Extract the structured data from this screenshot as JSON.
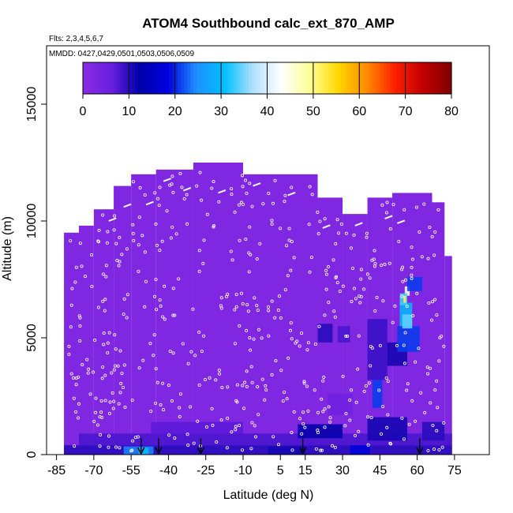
{
  "chart_data": {
    "type": "heatmap",
    "title": "ATOM4 Southbound calc_ext_870_AMP",
    "subtitle_flights": "Flts: 2,3,4,5,6,7",
    "subtitle_dates": "MMDD: 0427,0429,0501,0503,0506,0509",
    "xlabel": "Latitude (deg N)",
    "ylabel": "Altitude (m)",
    "xlim": [
      -89,
      89
    ],
    "ylim": [
      0,
      17500
    ],
    "x_ticks": [
      "-85",
      "-70",
      "-55",
      "-40",
      "-25",
      "-10",
      "5",
      "15",
      "30",
      "45",
      "60",
      "75"
    ],
    "x_tick_values": [
      -85,
      -70,
      -55,
      -40,
      -25,
      -10,
      5,
      15,
      30,
      45,
      60,
      75
    ],
    "y_ticks": [
      "0",
      "5000",
      "10000",
      "15000"
    ],
    "y_tick_values": [
      0,
      5000,
      10000,
      15000
    ],
    "colorbar": {
      "min": 0,
      "max": 80,
      "ticks": [
        "0",
        "10",
        "20",
        "30",
        "40",
        "50",
        "60",
        "70",
        "80"
      ],
      "tick_values": [
        0,
        10,
        20,
        30,
        40,
        50,
        60,
        70,
        80
      ],
      "colors": [
        "#8a2be2",
        "#6a1fe0",
        "#0000a8",
        "#0000e0",
        "#1e90ff",
        "#00bfff",
        "#b0e0ff",
        "#ffffff",
        "#ffff99",
        "#ffd700",
        "#ff8c00",
        "#ff2000",
        "#c00000",
        "#800000"
      ]
    },
    "coverage_columns": [
      {
        "lat0": -82,
        "lat1": -76,
        "alt_top": 9500
      },
      {
        "lat0": -76,
        "lat1": -70,
        "alt_top": 9800
      },
      {
        "lat0": -70,
        "lat1": -62,
        "alt_top": 10500
      },
      {
        "lat0": -62,
        "lat1": -55,
        "alt_top": 11500
      },
      {
        "lat0": -55,
        "lat1": -45,
        "alt_top": 12000
      },
      {
        "lat0": -45,
        "lat1": -30,
        "alt_top": 12200
      },
      {
        "lat0": -30,
        "lat1": -10,
        "alt_top": 12500
      },
      {
        "lat0": -10,
        "lat1": 10,
        "alt_top": 12000
      },
      {
        "lat0": 10,
        "lat1": 20,
        "alt_top": 12000
      },
      {
        "lat0": 20,
        "lat1": 30,
        "alt_top": 11000
      },
      {
        "lat0": 30,
        "lat1": 40,
        "alt_top": 10300
      },
      {
        "lat0": 40,
        "lat1": 50,
        "alt_top": 11000
      },
      {
        "lat0": 50,
        "lat1": 66,
        "alt_top": 11200
      },
      {
        "lat0": 66,
        "lat1": 71,
        "alt_top": 10800
      },
      {
        "lat0": 71,
        "lat1": 74,
        "alt_top": 8500
      }
    ],
    "base_value": 2,
    "features": [
      {
        "lat0": -82,
        "lat1": 74,
        "alt0": 0,
        "alt1": 400,
        "value": 10
      },
      {
        "lat0": -76,
        "lat1": 74,
        "alt0": 400,
        "alt1": 900,
        "value": 8
      },
      {
        "lat0": -58,
        "lat1": -46,
        "alt0": 0,
        "alt1": 350,
        "value": 24
      },
      {
        "lat0": -52,
        "lat1": -48,
        "alt0": 0,
        "alt1": 300,
        "value": 30
      },
      {
        "lat0": -47,
        "lat1": -10,
        "alt0": 900,
        "alt1": 1400,
        "value": 7
      },
      {
        "lat0": 12,
        "lat1": 30,
        "alt0": 700,
        "alt1": 1300,
        "value": 12
      },
      {
        "lat0": 0,
        "lat1": 15,
        "alt0": 0,
        "alt1": 350,
        "value": 11
      },
      {
        "lat0": 33,
        "lat1": 41,
        "alt0": 0,
        "alt1": 400,
        "value": 18
      },
      {
        "lat0": 40,
        "lat1": 56,
        "alt0": 600,
        "alt1": 1600,
        "value": 11
      },
      {
        "lat0": 42,
        "lat1": 46,
        "alt0": 2000,
        "alt1": 3200,
        "value": 21
      },
      {
        "lat0": 40,
        "lat1": 48,
        "alt0": 3200,
        "alt1": 5800,
        "value": 9
      },
      {
        "lat0": 48,
        "lat1": 56,
        "alt0": 3800,
        "alt1": 4800,
        "value": 11
      },
      {
        "lat0": 20,
        "lat1": 26,
        "alt0": 4800,
        "alt1": 5600,
        "value": 10
      },
      {
        "lat0": 28,
        "lat1": 33,
        "alt0": 4800,
        "alt1": 5500,
        "value": 8
      },
      {
        "lat0": 52,
        "lat1": 61,
        "alt0": 4400,
        "alt1": 5500,
        "value": 21
      },
      {
        "lat0": 53,
        "lat1": 58,
        "alt0": 5500,
        "alt1": 6500,
        "value": 29
      },
      {
        "lat0": 55,
        "lat1": 57,
        "alt0": 6800,
        "alt1": 7200,
        "value": 42
      },
      {
        "lat0": 53,
        "lat1": 56,
        "alt0": 6400,
        "alt1": 6900,
        "value": 33
      },
      {
        "lat0": 56,
        "lat1": 62,
        "alt0": 7000,
        "alt1": 7600,
        "value": 21
      },
      {
        "lat0": 54,
        "lat1": 58,
        "alt0": 5400,
        "alt1": 6000,
        "value": 34
      },
      {
        "lat0": 54.5,
        "lat1": 55.5,
        "alt0": 6500,
        "alt1": 6800,
        "value": 52
      },
      {
        "lat0": 24,
        "lat1": 34,
        "alt0": 1700,
        "alt1": 2600,
        "value": 5
      },
      {
        "lat0": 62,
        "lat1": 71,
        "alt0": 600,
        "alt1": 1400,
        "value": 10
      }
    ],
    "arrow_lats": [
      -51,
      -44,
      -27,
      14,
      61
    ],
    "arrow_alt_top": 700
  }
}
